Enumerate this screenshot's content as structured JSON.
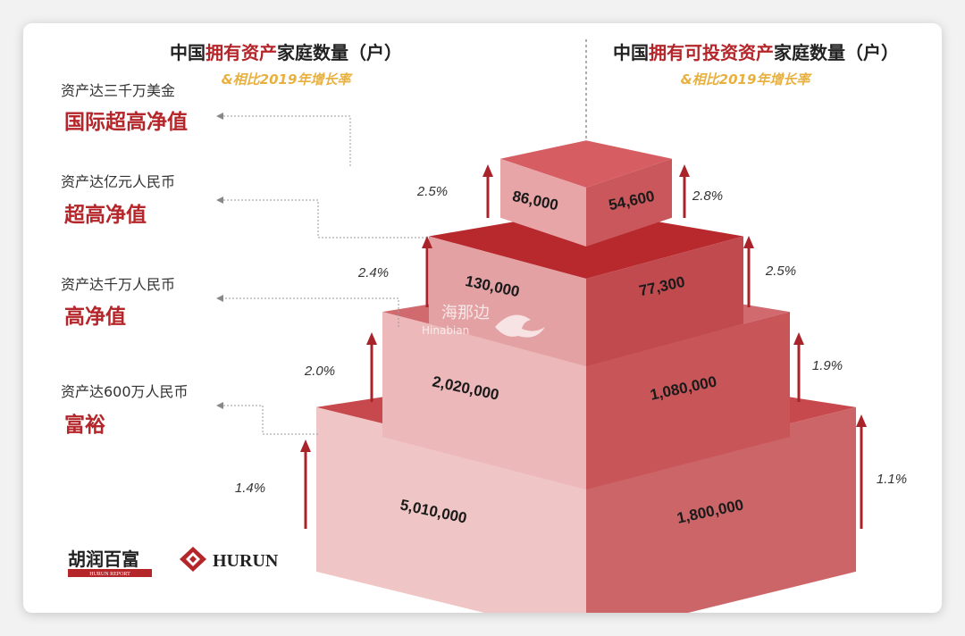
{
  "colors": {
    "accent": "#b4262a",
    "highlight": "#e8b03e",
    "arrow": "#a8242a"
  },
  "header": {
    "left_title_parts": [
      "中国",
      "拥有资产",
      "家庭数量（户）"
    ],
    "right_title_parts": [
      "中国",
      "拥有可投资资产",
      "家庭数量（户）"
    ],
    "left_subtitle": "&相比2019年增长率",
    "right_subtitle": "&相比2019年增长率"
  },
  "tiers": [
    {
      "desc": "资产达三千万美金",
      "name": "国际超高净值"
    },
    {
      "desc": "资产达亿元人民币",
      "name": "超高净值"
    },
    {
      "desc": "资产达千万人民币",
      "name": "高净值"
    },
    {
      "desc": "资产达600万人民币",
      "name": "富裕"
    }
  ],
  "watermark": {
    "cn": "海那边",
    "en": "Hinabian"
  },
  "logos": {
    "hurun_cn": "胡润百富",
    "hurun_report": "HURUN REPORT",
    "hurun_en": "HURUN"
  },
  "chart_data": {
    "type": "bar",
    "categories": [
      "国际超高净值",
      "超高净值",
      "高净值",
      "富裕"
    ],
    "series": [
      {
        "name": "中国拥有资产家庭数量（户）",
        "values": [
          86000,
          130000,
          2020000,
          5010000
        ],
        "labels": [
          "86,000",
          "130,000",
          "2,020,000",
          "5,010,000"
        ]
      },
      {
        "name": "中国拥有可投资资产家庭数量（户）",
        "values": [
          54600,
          77300,
          1080000,
          1800000
        ],
        "labels": [
          "54,600",
          "77,300",
          "1,080,000",
          "1,800,000"
        ]
      }
    ],
    "growth": [
      {
        "name": "中国拥有资产家庭数量（户）",
        "values": [
          "2.5%",
          "2.4%",
          "2.0%",
          "1.4%"
        ]
      },
      {
        "name": "中国拥有可投资资产家庭数量（户）",
        "values": [
          "2.8%",
          "2.5%",
          "1.9%",
          "1.1%"
        ]
      }
    ],
    "subtitle": "&相比2019年增长率"
  }
}
